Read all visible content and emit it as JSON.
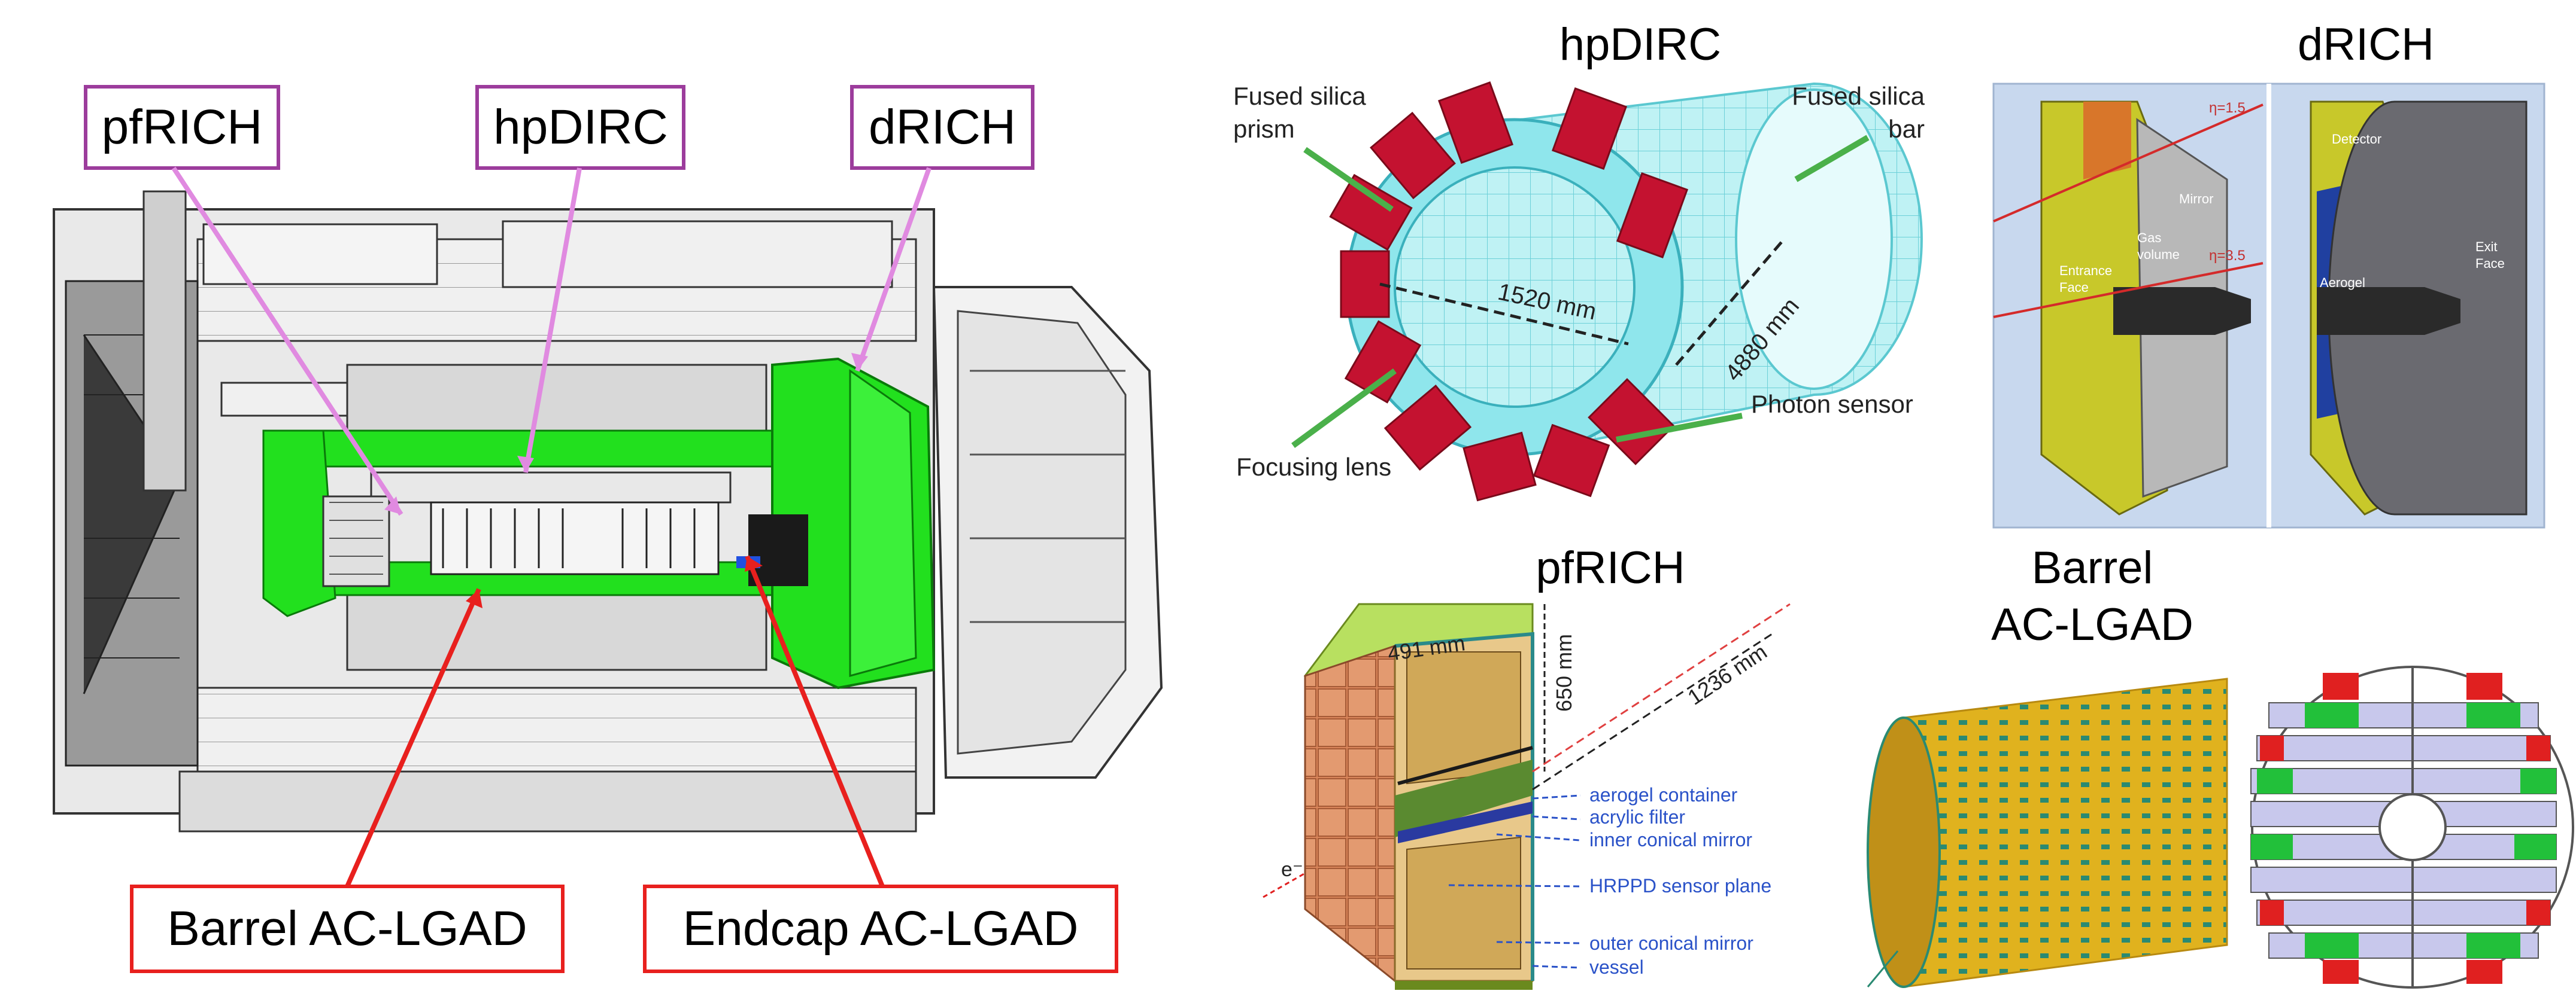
{
  "main_labels": {
    "pfrich": "pfRICH",
    "hpdirc": "hpDIRC",
    "drich": "dRICH",
    "barrel": "Barrel AC-LGAD",
    "endcap": "Endcap AC-LGAD"
  },
  "hpdirc_panel": {
    "title": "hpDIRC",
    "fused_prism": [
      "Fused silica",
      "prism"
    ],
    "fused_bar": [
      "Fused silica",
      "bar"
    ],
    "dim_diameter": "1520 mm",
    "dim_length": "4880 mm",
    "focusing_lens": "Focusing lens",
    "photon_sensor": "Photon sensor"
  },
  "drich_panel": {
    "title": "dRICH",
    "eta1": "η=1.5",
    "eta2": "η=3.5",
    "entrance_face": [
      "Entrance",
      "Face"
    ],
    "gas_volume": [
      "Gas",
      "volume"
    ],
    "mirror": "Mirror",
    "detector": "Detector",
    "aerogel": "Aerogel",
    "exit_face": [
      "Exit",
      "Face"
    ]
  },
  "pfrich_panel": {
    "title": "pfRICH",
    "dim_width": "491 mm",
    "dim_height": "650 mm",
    "dim_distance": "1236 mm",
    "electron": "e⁻",
    "legend": [
      "aerogel container",
      "acrylic filter",
      "inner conical mirror",
      "HRPPD sensor plane",
      "outer conical mirror",
      "vessel"
    ]
  },
  "barrel_panel": {
    "title": [
      "Barrel",
      "AC-LGAD"
    ]
  },
  "colors": {
    "label_box": "#9c3c9c",
    "pointer_pink": "#e08ae0",
    "barrel_red": "#e8201e",
    "detector_green": "#22e01e",
    "sensor_red": "#c41230",
    "silica_cyan": "#8fe6ec",
    "legend_blue": "#2a52c8",
    "drich_bg": "#c8d8ee",
    "drich_yellow": "#c8c82a"
  }
}
